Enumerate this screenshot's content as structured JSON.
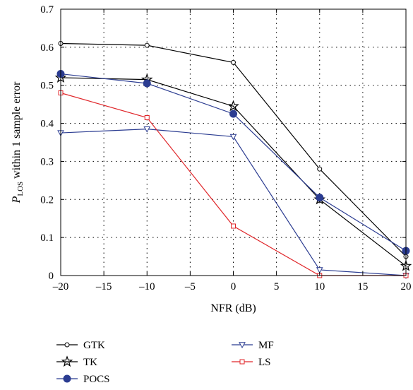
{
  "chart_data": {
    "type": "line",
    "title": "",
    "xlabel": "NFR (dB)",
    "ylabel": {
      "p": "P",
      "sub": "LOS",
      "rest": " within 1 sample error"
    },
    "xlim": [
      -20,
      20
    ],
    "ylim": [
      0,
      0.7
    ],
    "xticks": [
      "–20",
      "–15",
      "–10",
      "–5",
      "0",
      "5",
      "10",
      "15",
      "20"
    ],
    "xtick_values": [
      -20,
      -15,
      -10,
      -5,
      0,
      5,
      10,
      15,
      20
    ],
    "yticks": [
      "0",
      "0.1",
      "0.2",
      "0.3",
      "0.4",
      "0.5",
      "0.6",
      "0.7"
    ],
    "ytick_values": [
      0,
      0.1,
      0.2,
      0.3,
      0.4,
      0.5,
      0.6,
      0.7
    ],
    "grid": true,
    "legend_position": "below",
    "x": [
      -20,
      -10,
      0,
      10,
      20
    ],
    "series": [
      {
        "name": "GTK",
        "values": [
          0.61,
          0.605,
          0.56,
          0.28,
          0.05
        ],
        "color": "#000000",
        "marker": "circle-open"
      },
      {
        "name": "TK",
        "values": [
          0.52,
          0.515,
          0.445,
          0.2,
          0.025
        ],
        "color": "#000000",
        "marker": "star-open"
      },
      {
        "name": "POCS",
        "values": [
          0.53,
          0.505,
          0.425,
          0.205,
          0.065
        ],
        "color": "#2b3c91",
        "marker": "circle-filled"
      },
      {
        "name": "MF",
        "values": [
          0.375,
          0.385,
          0.365,
          0.015,
          0.0
        ],
        "color": "#2b3c91",
        "marker": "triangle-down-open"
      },
      {
        "name": "LS",
        "values": [
          0.48,
          0.415,
          0.13,
          0.0,
          0.0
        ],
        "color": "#e0262a",
        "marker": "square-open"
      }
    ]
  }
}
